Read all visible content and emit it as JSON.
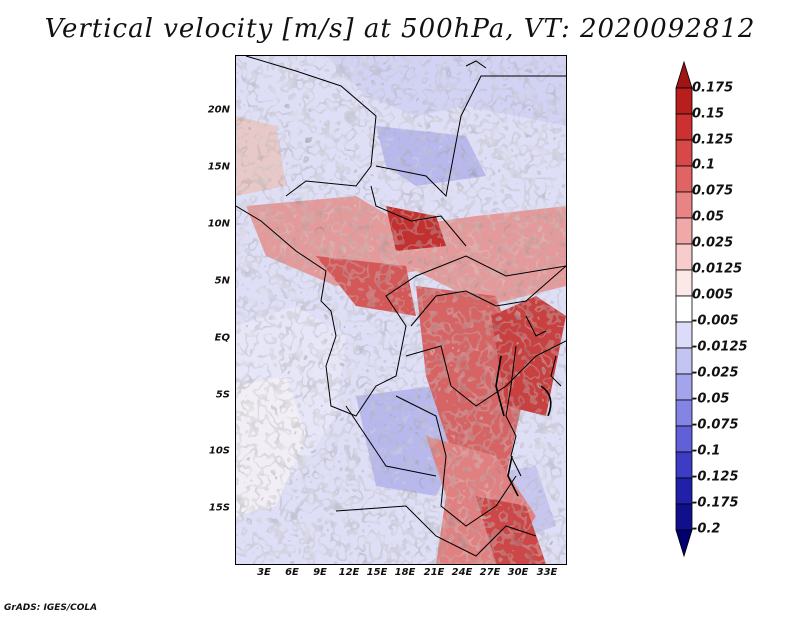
{
  "title": "Vertical velocity [m/s] at 500hPa, VT: 2020092812",
  "footer": "GrADS: IGES/COLA",
  "map": {
    "lat_ticks": [
      "20N",
      "15N",
      "10N",
      "5N",
      "EQ",
      "5S",
      "10S",
      "15S"
    ],
    "lon_ticks": [
      "3E",
      "6E",
      "9E",
      "12E",
      "15E",
      "18E",
      "21E",
      "24E",
      "27E",
      "30E",
      "33E"
    ]
  },
  "colorbar": {
    "labels": [
      "0.175",
      "0.15",
      "0.125",
      "0.1",
      "0.075",
      "0.05",
      "0.025",
      "0.0125",
      "0.005",
      "-0.005",
      "-0.0125",
      "-0.025",
      "-0.05",
      "-0.075",
      "-0.1",
      "-0.125",
      "-0.175",
      "-0.2"
    ],
    "colors": [
      "#a01414",
      "#b81e1e",
      "#cc3030",
      "#d84848",
      "#e06464",
      "#e88484",
      "#f0a8a8",
      "#f8cccc",
      "#fde8e8",
      "#ffffff",
      "#dcdcf8",
      "#c4c4f4",
      "#a4a4ec",
      "#8484e4",
      "#6060d8",
      "#3c3cc4",
      "#2020a8",
      "#10108c",
      "#000070"
    ]
  }
}
